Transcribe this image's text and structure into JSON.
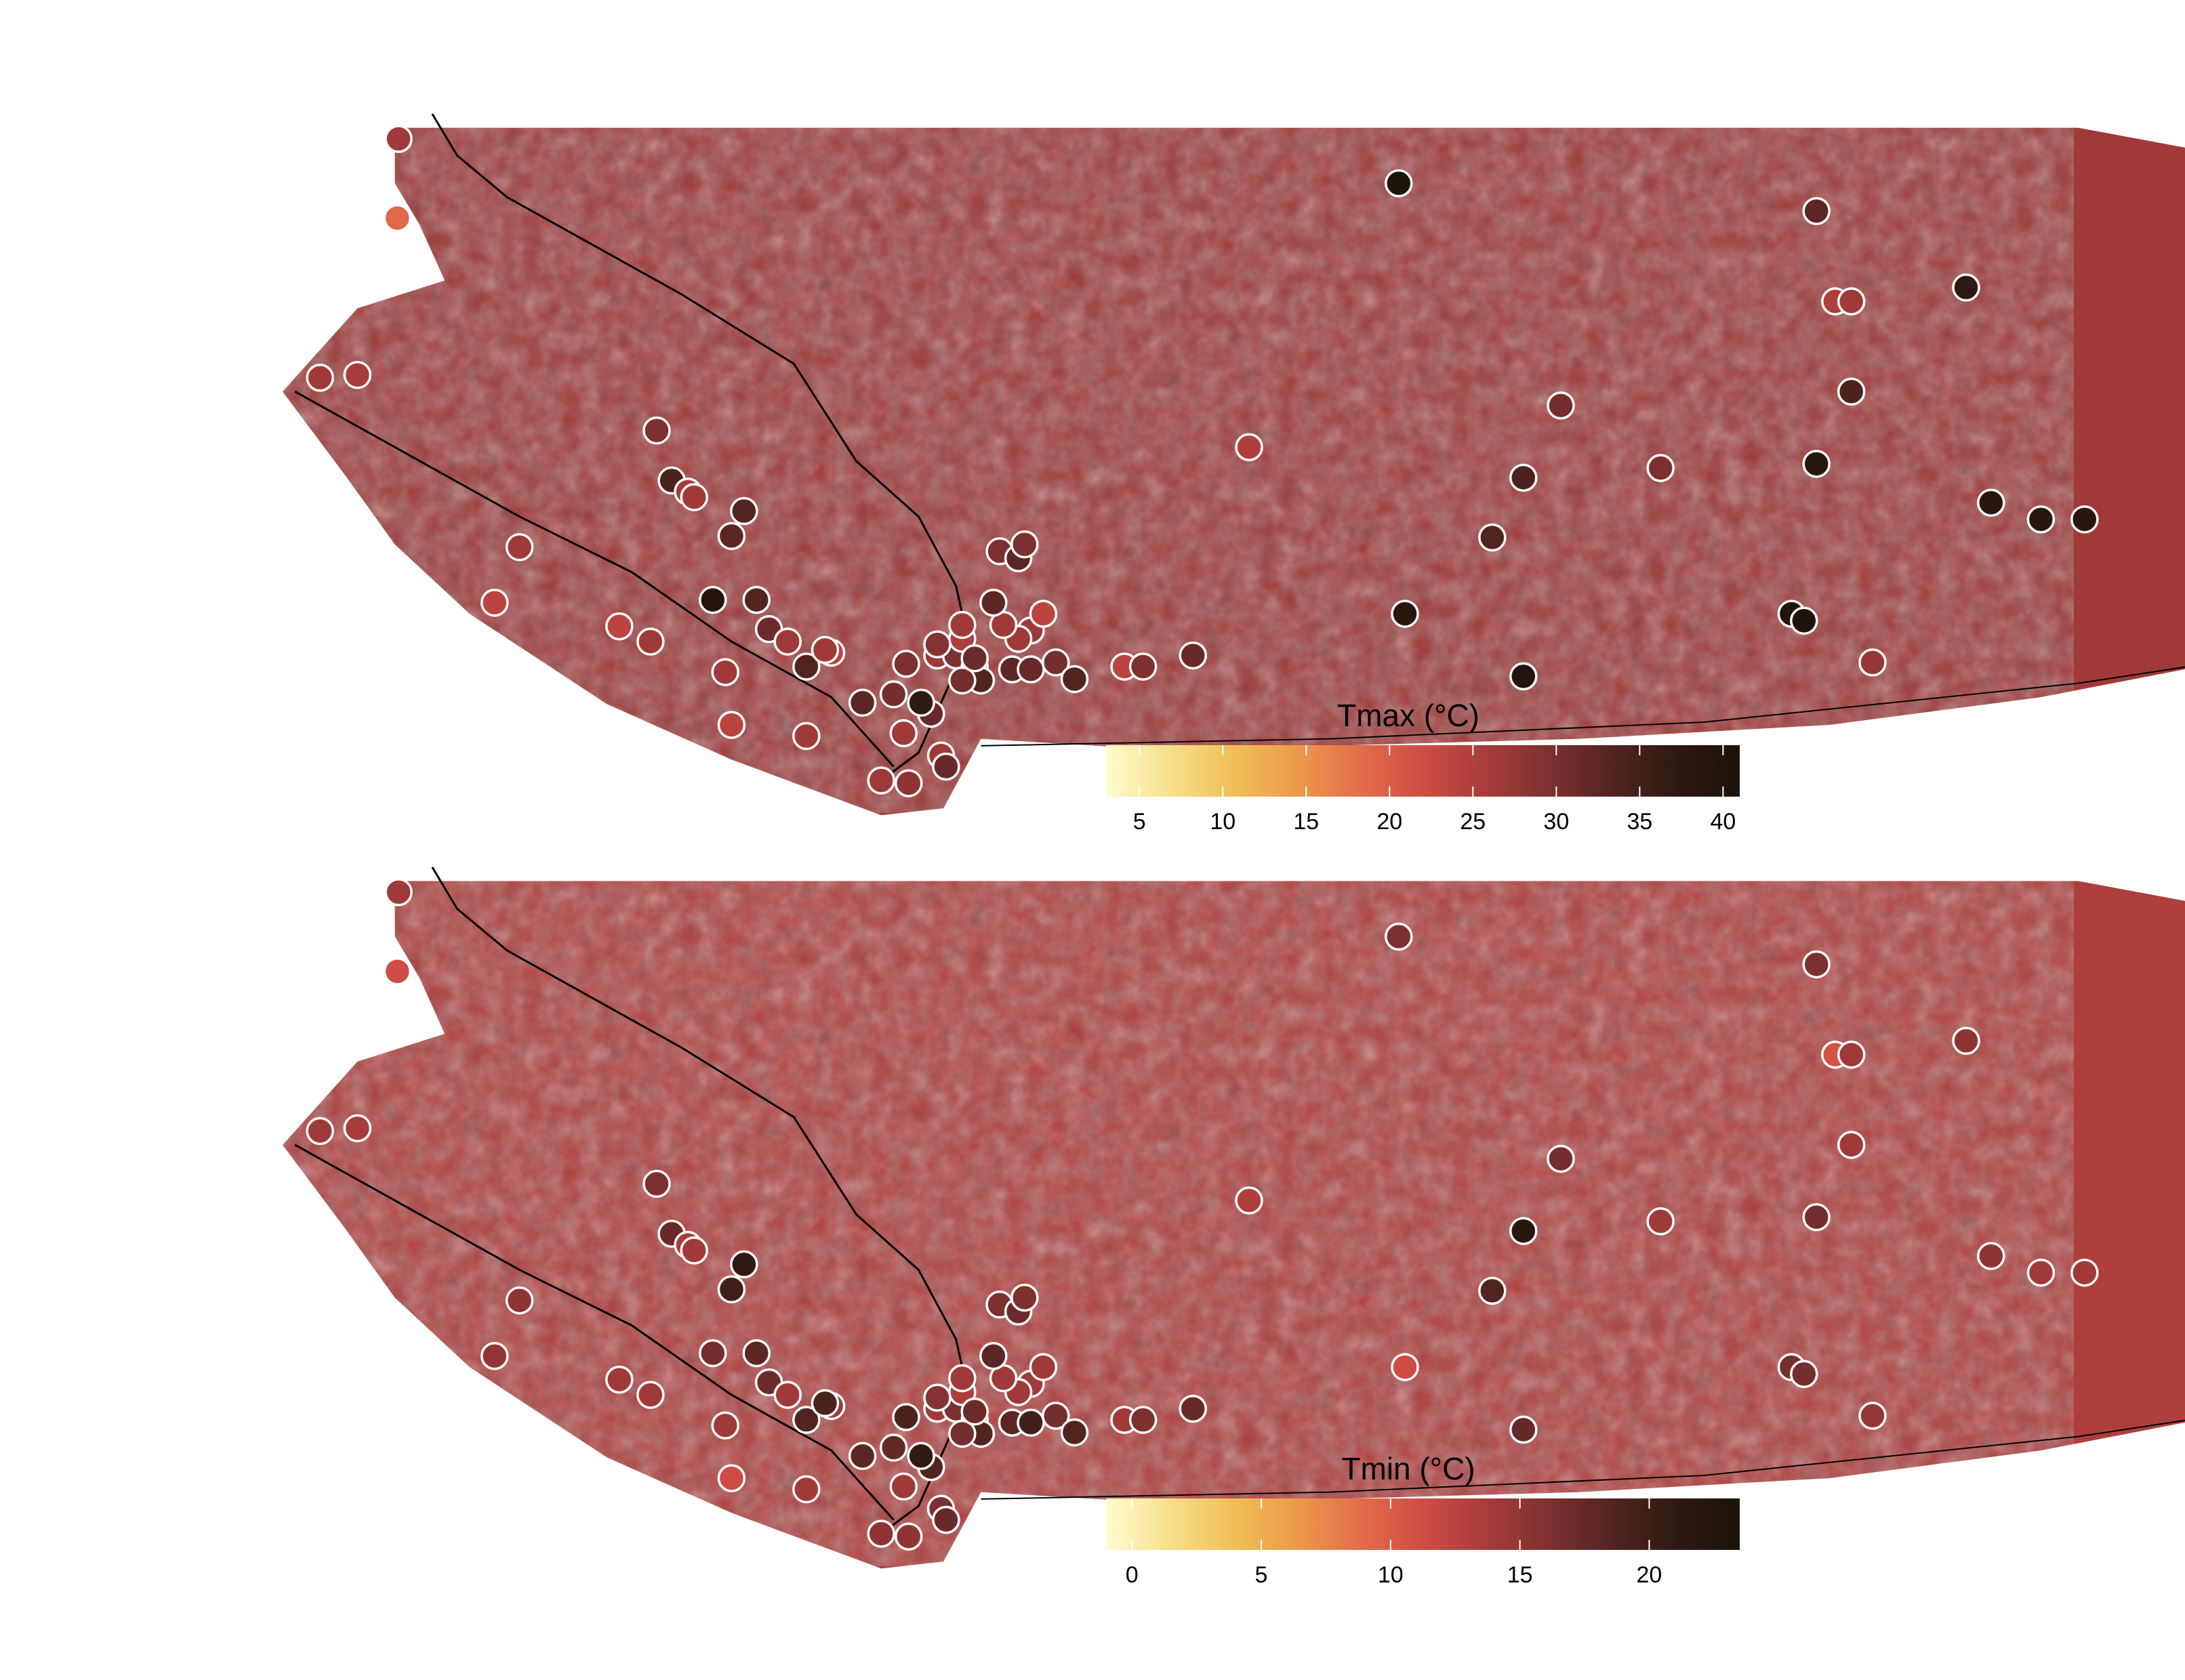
{
  "panels": [
    {
      "id": "tmax",
      "legend": {
        "title": "Tmax (°C)",
        "min": 3,
        "max": 41,
        "ticks": [
          5,
          10,
          15,
          20,
          25,
          30,
          35,
          40
        ]
      },
      "background_level": 0.62,
      "stations": [
        {
          "lon": -127.47,
          "lat": 52.92,
          "level": 0.62
        },
        {
          "lon": -127.48,
          "lat": 52.35,
          "level": 0.42
        },
        {
          "lon": -128.1,
          "lat": 51.2,
          "level": 0.62
        },
        {
          "lon": -127.8,
          "lat": 51.22,
          "level": 0.6
        },
        {
          "lon": -125.4,
          "lat": 50.82,
          "level": 0.7
        },
        {
          "lon": -125.28,
          "lat": 50.46,
          "level": 0.82
        },
        {
          "lon": -125.15,
          "lat": 50.38,
          "level": 0.6
        },
        {
          "lon": -125.1,
          "lat": 50.34,
          "level": 0.62
        },
        {
          "lon": -124.8,
          "lat": 50.06,
          "level": 0.78
        },
        {
          "lon": -124.7,
          "lat": 50.24,
          "level": 0.8
        },
        {
          "lon": -126.5,
          "lat": 49.98,
          "level": 0.62
        },
        {
          "lon": -126.7,
          "lat": 49.58,
          "level": 0.55
        },
        {
          "lon": -125.7,
          "lat": 49.41,
          "level": 0.55
        },
        {
          "lon": -125.45,
          "lat": 49.3,
          "level": 0.62
        },
        {
          "lon": -124.95,
          "lat": 49.6,
          "level": 0.96
        },
        {
          "lon": -124.6,
          "lat": 49.6,
          "level": 0.8
        },
        {
          "lon": -124.5,
          "lat": 49.39,
          "level": 0.74
        },
        {
          "lon": -124.35,
          "lat": 49.3,
          "level": 0.62
        },
        {
          "lon": -124.0,
          "lat": 49.22,
          "level": 0.55
        },
        {
          "lon": -124.2,
          "lat": 49.12,
          "level": 0.8
        },
        {
          "lon": -124.85,
          "lat": 49.08,
          "level": 0.62
        },
        {
          "lon": -123.75,
          "lat": 48.86,
          "level": 0.78
        },
        {
          "lon": -123.42,
          "lat": 48.64,
          "level": 0.62
        },
        {
          "lon": -123.12,
          "lat": 48.48,
          "level": 0.62
        },
        {
          "lon": -123.08,
          "lat": 48.4,
          "level": 0.75
        },
        {
          "lon": -124.8,
          "lat": 48.7,
          "level": 0.55
        },
        {
          "lon": -124.2,
          "lat": 48.62,
          "level": 0.62
        },
        {
          "lon": -123.6,
          "lat": 48.3,
          "level": 0.62
        },
        {
          "lon": -123.38,
          "lat": 48.28,
          "level": 0.66
        },
        {
          "lon": -123.2,
          "lat": 48.78,
          "level": 0.75
        },
        {
          "lon": -123.5,
          "lat": 48.92,
          "level": 0.72
        },
        {
          "lon": -123.28,
          "lat": 48.86,
          "level": 0.9
        },
        {
          "lon": -124.05,
          "lat": 49.24,
          "level": 0.62
        },
        {
          "lon": -123.4,
          "lat": 49.14,
          "level": 0.7
        },
        {
          "lon": -123.15,
          "lat": 49.2,
          "level": 0.62
        },
        {
          "lon": -123.0,
          "lat": 49.2,
          "level": 0.7
        },
        {
          "lon": -122.95,
          "lat": 49.32,
          "level": 0.58
        },
        {
          "lon": -122.95,
          "lat": 49.42,
          "level": 0.62
        },
        {
          "lon": -123.15,
          "lat": 49.28,
          "level": 0.68
        },
        {
          "lon": -122.85,
          "lat": 49.12,
          "level": 0.78
        },
        {
          "lon": -122.8,
          "lat": 49.02,
          "level": 0.8
        },
        {
          "lon": -122.95,
          "lat": 49.02,
          "level": 0.72
        },
        {
          "lon": -122.55,
          "lat": 49.1,
          "level": 0.78
        },
        {
          "lon": -122.4,
          "lat": 49.1,
          "level": 0.75
        },
        {
          "lon": -122.4,
          "lat": 49.38,
          "level": 0.62
        },
        {
          "lon": -122.5,
          "lat": 49.32,
          "level": 0.62
        },
        {
          "lon": -122.62,
          "lat": 49.42,
          "level": 0.62
        },
        {
          "lon": -122.7,
          "lat": 49.58,
          "level": 0.78
        },
        {
          "lon": -122.85,
          "lat": 49.18,
          "level": 0.74
        },
        {
          "lon": -122.3,
          "lat": 49.5,
          "level": 0.55
        },
        {
          "lon": -122.2,
          "lat": 49.15,
          "level": 0.72
        },
        {
          "lon": -122.05,
          "lat": 49.03,
          "level": 0.8
        },
        {
          "lon": -121.65,
          "lat": 49.12,
          "level": 0.55
        },
        {
          "lon": -121.5,
          "lat": 49.12,
          "level": 0.7
        },
        {
          "lon": -121.1,
          "lat": 49.2,
          "level": 0.75
        },
        {
          "lon": -122.65,
          "lat": 49.95,
          "level": 0.7
        },
        {
          "lon": -122.5,
          "lat": 49.9,
          "level": 0.78
        },
        {
          "lon": -122.45,
          "lat": 50.0,
          "level": 0.7
        },
        {
          "lon": -120.65,
          "lat": 50.7,
          "level": 0.58
        },
        {
          "lon": -119.4,
          "lat": 49.5,
          "level": 0.94
        },
        {
          "lon": -118.7,
          "lat": 50.05,
          "level": 0.8
        },
        {
          "lon": -118.45,
          "lat": 50.48,
          "level": 0.82
        },
        {
          "lon": -118.45,
          "lat": 49.05,
          "level": 0.96
        },
        {
          "lon": -118.15,
          "lat": 51.0,
          "level": 0.72
        },
        {
          "lon": -117.35,
          "lat": 50.55,
          "level": 0.7
        },
        {
          "lon": -119.45,
          "lat": 52.6,
          "level": 0.99
        },
        {
          "lon": -116.1,
          "lat": 52.4,
          "level": 0.78
        },
        {
          "lon": -115.95,
          "lat": 51.75,
          "level": 0.58
        },
        {
          "lon": -115.82,
          "lat": 51.75,
          "level": 0.62
        },
        {
          "lon": -115.82,
          "lat": 51.1,
          "level": 0.82
        },
        {
          "lon": -116.1,
          "lat": 50.58,
          "level": 0.94
        },
        {
          "lon": -116.3,
          "lat": 49.5,
          "level": 0.96
        },
        {
          "lon": -116.2,
          "lat": 49.45,
          "level": 0.98
        },
        {
          "lon": -115.65,
          "lat": 49.15,
          "level": 0.64
        },
        {
          "lon": -114.9,
          "lat": 51.85,
          "level": 0.9
        },
        {
          "lon": -114.7,
          "lat": 50.3,
          "level": 0.94
        },
        {
          "lon": -114.3,
          "lat": 50.18,
          "level": 0.94
        },
        {
          "lon": -113.95,
          "lat": 50.18,
          "level": 0.94
        }
      ]
    },
    {
      "id": "tmin",
      "legend": {
        "title": "Tmin (°C)",
        "min": -1,
        "max": 23.5,
        "ticks": [
          0,
          5,
          10,
          15,
          20
        ]
      },
      "background_level": 0.58,
      "stations": [
        {
          "lon": -127.47,
          "lat": 52.92,
          "level": 0.62
        },
        {
          "lon": -127.48,
          "lat": 52.35,
          "level": 0.5
        },
        {
          "lon": -128.1,
          "lat": 51.2,
          "level": 0.62
        },
        {
          "lon": -127.8,
          "lat": 51.22,
          "level": 0.6
        },
        {
          "lon": -125.4,
          "lat": 50.82,
          "level": 0.7
        },
        {
          "lon": -125.28,
          "lat": 50.46,
          "level": 0.75
        },
        {
          "lon": -125.15,
          "lat": 50.38,
          "level": 0.6
        },
        {
          "lon": -125.1,
          "lat": 50.34,
          "level": 0.62
        },
        {
          "lon": -124.8,
          "lat": 50.06,
          "level": 0.85
        },
        {
          "lon": -124.7,
          "lat": 50.24,
          "level": 0.9
        },
        {
          "lon": -126.5,
          "lat": 49.98,
          "level": 0.66
        },
        {
          "lon": -126.7,
          "lat": 49.58,
          "level": 0.65
        },
        {
          "lon": -125.7,
          "lat": 49.41,
          "level": 0.62
        },
        {
          "lon": -125.45,
          "lat": 49.3,
          "level": 0.62
        },
        {
          "lon": -124.95,
          "lat": 49.6,
          "level": 0.72
        },
        {
          "lon": -124.6,
          "lat": 49.6,
          "level": 0.78
        },
        {
          "lon": -124.5,
          "lat": 49.39,
          "level": 0.74
        },
        {
          "lon": -124.35,
          "lat": 49.3,
          "level": 0.62
        },
        {
          "lon": -124.0,
          "lat": 49.22,
          "level": 0.62
        },
        {
          "lon": -124.2,
          "lat": 49.12,
          "level": 0.8
        },
        {
          "lon": -124.85,
          "lat": 49.08,
          "level": 0.62
        },
        {
          "lon": -123.75,
          "lat": 48.86,
          "level": 0.78
        },
        {
          "lon": -123.42,
          "lat": 48.64,
          "level": 0.62
        },
        {
          "lon": -123.12,
          "lat": 48.48,
          "level": 0.7
        },
        {
          "lon": -123.08,
          "lat": 48.4,
          "level": 0.75
        },
        {
          "lon": -124.8,
          "lat": 48.7,
          "level": 0.5
        },
        {
          "lon": -124.2,
          "lat": 48.62,
          "level": 0.62
        },
        {
          "lon": -123.6,
          "lat": 48.3,
          "level": 0.66
        },
        {
          "lon": -123.38,
          "lat": 48.28,
          "level": 0.66
        },
        {
          "lon": -123.2,
          "lat": 48.78,
          "level": 0.8
        },
        {
          "lon": -123.5,
          "lat": 48.92,
          "level": 0.76
        },
        {
          "lon": -123.28,
          "lat": 48.86,
          "level": 0.9
        },
        {
          "lon": -124.05,
          "lat": 49.24,
          "level": 0.82
        },
        {
          "lon": -123.4,
          "lat": 49.14,
          "level": 0.82
        },
        {
          "lon": -123.15,
          "lat": 49.2,
          "level": 0.62
        },
        {
          "lon": -123.0,
          "lat": 49.2,
          "level": 0.7
        },
        {
          "lon": -122.95,
          "lat": 49.32,
          "level": 0.58
        },
        {
          "lon": -122.95,
          "lat": 49.42,
          "level": 0.62
        },
        {
          "lon": -123.15,
          "lat": 49.28,
          "level": 0.68
        },
        {
          "lon": -122.85,
          "lat": 49.12,
          "level": 0.78
        },
        {
          "lon": -122.8,
          "lat": 49.02,
          "level": 0.8
        },
        {
          "lon": -122.95,
          "lat": 49.02,
          "level": 0.72
        },
        {
          "lon": -122.55,
          "lat": 49.1,
          "level": 0.78
        },
        {
          "lon": -122.4,
          "lat": 49.1,
          "level": 0.85
        },
        {
          "lon": -122.4,
          "lat": 49.38,
          "level": 0.62
        },
        {
          "lon": -122.5,
          "lat": 49.32,
          "level": 0.62
        },
        {
          "lon": -122.62,
          "lat": 49.42,
          "level": 0.62
        },
        {
          "lon": -122.7,
          "lat": 49.58,
          "level": 0.78
        },
        {
          "lon": -122.85,
          "lat": 49.18,
          "level": 0.74
        },
        {
          "lon": -122.3,
          "lat": 49.5,
          "level": 0.62
        },
        {
          "lon": -122.2,
          "lat": 49.15,
          "level": 0.72
        },
        {
          "lon": -122.05,
          "lat": 49.03,
          "level": 0.8
        },
        {
          "lon": -121.65,
          "lat": 49.12,
          "level": 0.62
        },
        {
          "lon": -121.5,
          "lat": 49.12,
          "level": 0.7
        },
        {
          "lon": -121.1,
          "lat": 49.2,
          "level": 0.75
        },
        {
          "lon": -122.65,
          "lat": 49.95,
          "level": 0.7
        },
        {
          "lon": -122.5,
          "lat": 49.9,
          "level": 0.74
        },
        {
          "lon": -122.45,
          "lat": 50.0,
          "level": 0.7
        },
        {
          "lon": -120.65,
          "lat": 50.7,
          "level": 0.58
        },
        {
          "lon": -119.4,
          "lat": 49.5,
          "level": 0.5
        },
        {
          "lon": -118.7,
          "lat": 50.05,
          "level": 0.8
        },
        {
          "lon": -118.45,
          "lat": 50.48,
          "level": 0.94
        },
        {
          "lon": -118.45,
          "lat": 49.05,
          "level": 0.76
        },
        {
          "lon": -118.15,
          "lat": 51.0,
          "level": 0.72
        },
        {
          "lon": -117.35,
          "lat": 50.55,
          "level": 0.62
        },
        {
          "lon": -119.45,
          "lat": 52.6,
          "level": 0.7
        },
        {
          "lon": -116.1,
          "lat": 52.4,
          "level": 0.7
        },
        {
          "lon": -115.95,
          "lat": 51.75,
          "level": 0.48
        },
        {
          "lon": -115.82,
          "lat": 51.75,
          "level": 0.62
        },
        {
          "lon": -115.82,
          "lat": 51.1,
          "level": 0.62
        },
        {
          "lon": -116.1,
          "lat": 50.58,
          "level": 0.72
        },
        {
          "lon": -116.3,
          "lat": 49.5,
          "level": 0.72
        },
        {
          "lon": -116.2,
          "lat": 49.45,
          "level": 0.72
        },
        {
          "lon": -115.65,
          "lat": 49.15,
          "level": 0.64
        },
        {
          "lon": -114.9,
          "lat": 51.85,
          "level": 0.66
        },
        {
          "lon": -114.7,
          "lat": 50.3,
          "level": 0.66
        },
        {
          "lon": -114.3,
          "lat": 50.18,
          "level": 0.62
        },
        {
          "lon": -113.95,
          "lat": 50.18,
          "level": 0.62
        }
      ]
    }
  ],
  "colors": {
    "palette": [
      "#fffccf",
      "#f6e08a",
      "#f0c055",
      "#ec9a4a",
      "#e46e4a",
      "#cf4c44",
      "#a73c3b",
      "#7d3030",
      "#522420",
      "#2f1912",
      "#1b1309"
    ],
    "station_stroke": "#ffffff",
    "coastline": "#000000",
    "background": "#ffffff"
  }
}
